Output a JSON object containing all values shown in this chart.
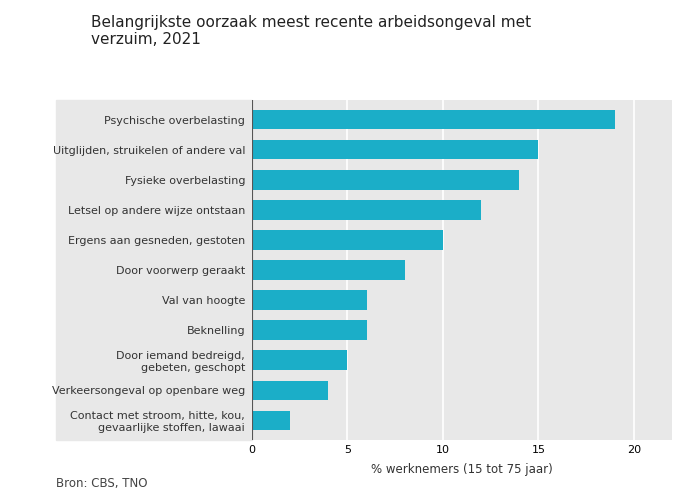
{
  "title": "Belangrijkste oorzaak meest recente arbeidsongeval met\nverzuim, 2021",
  "categories": [
    "Contact met stroom, hitte, kou,\ngevaarlijke stoffen, lawaai",
    "Verkeersongeval op openbare weg",
    "Door iemand bedreigd,\ngebeten, geschopt",
    "Beknelling",
    "Val van hoogte",
    "Door voorwerp geraakt",
    "Ergens aan gesneden, gestoten",
    "Letsel op andere wijze ontstaan",
    "Fysieke overbelasting",
    "Uitglijden, struikelen of andere val",
    "Psychische overbelasting"
  ],
  "values": [
    2,
    4,
    5,
    6,
    6,
    8,
    10,
    12,
    14,
    15,
    19
  ],
  "bar_color": "#1baec8",
  "plot_bg_color": "#e8e8e8",
  "fig_bg_color": "#ffffff",
  "xlabel": "% werknemers (15 tot 75 jaar)",
  "source": "Bron: CBS, TNO",
  "xlim": [
    0,
    22
  ],
  "xticks": [
    0,
    5,
    10,
    15,
    20
  ],
  "title_fontsize": 11,
  "label_fontsize": 8,
  "xlabel_fontsize": 8.5,
  "source_fontsize": 8.5,
  "tick_fontsize": 8
}
